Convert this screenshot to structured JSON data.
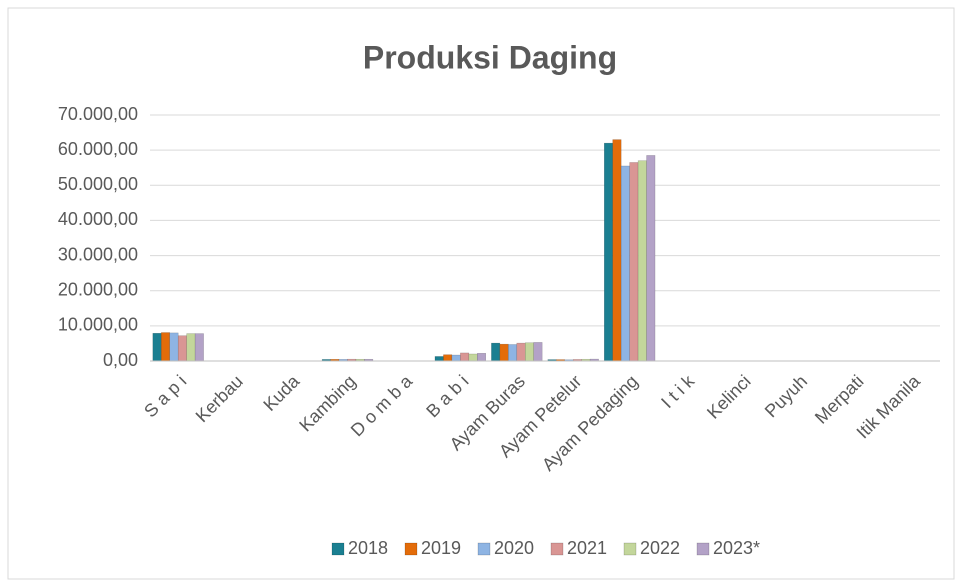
{
  "chart_data": {
    "type": "bar",
    "title": "Produksi Daging",
    "categories": [
      "S a p i",
      "Kerbau",
      "Kuda",
      "Kambing",
      "D o m b a",
      "B a b i",
      "Ayam Buras",
      "Ayam Petelur",
      "Ayam Pedaging",
      "I t i k",
      "Kelinci",
      "Puyuh",
      "Merpati",
      "Itik Manila"
    ],
    "series": [
      {
        "name": "2018",
        "color": "#1b7f91",
        "values": [
          7900,
          30,
          10,
          450,
          20,
          1300,
          5100,
          400,
          62000,
          50,
          5,
          5,
          5,
          5
        ]
      },
      {
        "name": "2019",
        "color": "#e36c0a",
        "values": [
          8100,
          30,
          10,
          480,
          20,
          1800,
          4800,
          400,
          63000,
          50,
          5,
          5,
          5,
          5
        ]
      },
      {
        "name": "2020",
        "color": "#8eb4e3",
        "values": [
          8000,
          30,
          10,
          470,
          20,
          1700,
          4700,
          350,
          55500,
          50,
          5,
          5,
          5,
          5
        ]
      },
      {
        "name": "2021",
        "color": "#d99694",
        "values": [
          7200,
          30,
          10,
          520,
          20,
          2300,
          5100,
          450,
          56500,
          50,
          5,
          5,
          5,
          5
        ]
      },
      {
        "name": "2022",
        "color": "#c3d69b",
        "values": [
          7800,
          30,
          10,
          500,
          20,
          2000,
          5200,
          500,
          57000,
          50,
          5,
          5,
          5,
          5
        ]
      },
      {
        "name": "2023*",
        "color": "#b3a2c7",
        "values": [
          7800,
          30,
          10,
          500,
          20,
          2200,
          5300,
          550,
          58500,
          50,
          5,
          5,
          5,
          5
        ]
      }
    ],
    "ylim": [
      0,
      70000
    ],
    "yticks": [
      {
        "value": 0,
        "label": "0,00"
      },
      {
        "value": 10000,
        "label": "10.000,00"
      },
      {
        "value": 20000,
        "label": "20.000,00"
      },
      {
        "value": 30000,
        "label": "30.000,00"
      },
      {
        "value": 40000,
        "label": "40.000,00"
      },
      {
        "value": 50000,
        "label": "50.000,00"
      },
      {
        "value": 60000,
        "label": "60.000,00"
      },
      {
        "value": 70000,
        "label": "70.000,00"
      }
    ],
    "grid": true,
    "legend": "bottom"
  }
}
